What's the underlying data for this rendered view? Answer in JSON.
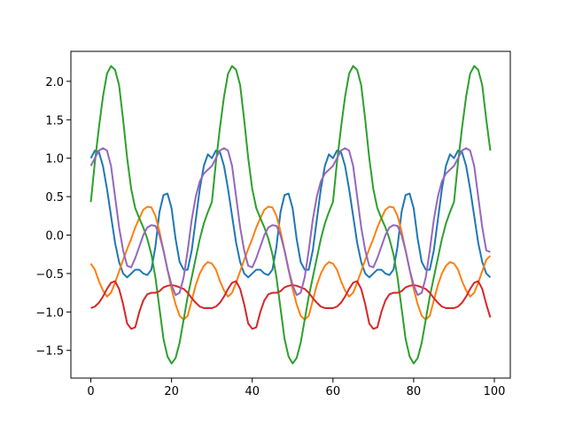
{
  "chart_data": {
    "type": "line",
    "x": [
      0,
      1,
      2,
      3,
      4,
      5,
      6,
      7,
      8,
      9,
      10,
      11,
      12,
      13,
      14,
      15,
      16,
      17,
      18,
      19,
      20,
      21,
      22,
      23,
      24,
      25,
      26,
      27,
      28,
      29,
      30,
      31,
      32,
      33,
      34,
      35,
      36,
      37,
      38,
      39,
      40,
      41,
      42,
      43,
      44,
      45,
      46,
      47,
      48,
      49,
      50,
      51,
      52,
      53,
      54,
      55,
      56,
      57,
      58,
      59,
      60,
      61,
      62,
      63,
      64,
      65,
      66,
      67,
      68,
      69,
      70,
      71,
      72,
      73,
      74,
      75,
      76,
      77,
      78,
      79,
      80,
      81,
      82,
      83,
      84,
      85,
      86,
      87,
      88,
      89,
      90,
      91,
      92,
      93,
      94,
      95,
      96,
      97,
      98,
      99
    ],
    "series": [
      {
        "color": "#1f77b4",
        "values": [
          1.0,
          1.1,
          1.08,
          0.9,
          0.6,
          0.25,
          -0.1,
          -0.35,
          -0.5,
          -0.55,
          -0.5,
          -0.45,
          -0.45,
          -0.5,
          -0.52,
          -0.45,
          -0.15,
          0.3,
          0.52,
          0.54,
          0.35,
          -0.05,
          -0.35,
          -0.45,
          -0.45,
          -0.2,
          0.2,
          0.6,
          0.9,
          1.05,
          1.0,
          1.1,
          1.08,
          0.9,
          0.6,
          0.25,
          -0.1,
          -0.35,
          -0.5,
          -0.55,
          -0.5,
          -0.45,
          -0.45,
          -0.5,
          -0.52,
          -0.45,
          -0.15,
          0.3,
          0.52,
          0.54,
          0.35,
          -0.05,
          -0.35,
          -0.45,
          -0.45,
          -0.2,
          0.2,
          0.6,
          0.9,
          1.05,
          1.0,
          1.1,
          1.08,
          0.9,
          0.6,
          0.25,
          -0.1,
          -0.35,
          -0.5,
          -0.55,
          -0.5,
          -0.45,
          -0.45,
          -0.5,
          -0.52,
          -0.45,
          -0.15,
          0.3,
          0.52,
          0.54,
          0.35,
          -0.05,
          -0.35,
          -0.45,
          -0.45,
          -0.2,
          0.2,
          0.6,
          0.9,
          1.05,
          1.0,
          1.1,
          1.08,
          0.9,
          0.6,
          0.25,
          -0.1,
          -0.35,
          -0.5,
          -0.55
        ]
      },
      {
        "color": "#ff7f0e",
        "values": [
          -0.37,
          -0.45,
          -0.6,
          -0.72,
          -0.8,
          -0.75,
          -0.62,
          -0.47,
          -0.32,
          -0.18,
          -0.05,
          0.1,
          0.22,
          0.33,
          0.37,
          0.36,
          0.25,
          0.05,
          -0.2,
          -0.45,
          -0.7,
          -0.9,
          -1.05,
          -1.1,
          -1.05,
          -0.85,
          -0.65,
          -0.5,
          -0.4,
          -0.35,
          -0.37,
          -0.45,
          -0.6,
          -0.72,
          -0.8,
          -0.75,
          -0.62,
          -0.47,
          -0.32,
          -0.18,
          -0.05,
          0.1,
          0.22,
          0.33,
          0.37,
          0.36,
          0.25,
          0.05,
          -0.2,
          -0.45,
          -0.7,
          -0.9,
          -1.05,
          -1.1,
          -1.05,
          -0.85,
          -0.65,
          -0.5,
          -0.4,
          -0.35,
          -0.37,
          -0.45,
          -0.6,
          -0.72,
          -0.8,
          -0.75,
          -0.62,
          -0.47,
          -0.32,
          -0.18,
          -0.05,
          0.1,
          0.22,
          0.33,
          0.37,
          0.36,
          0.25,
          0.05,
          -0.2,
          -0.45,
          -0.7,
          -0.9,
          -1.05,
          -1.1,
          -1.05,
          -0.85,
          -0.65,
          -0.5,
          -0.4,
          -0.35,
          -0.37,
          -0.45,
          -0.6,
          -0.72,
          -0.8,
          -0.75,
          -0.62,
          -0.47,
          -0.32,
          -0.27
        ]
      },
      {
        "color": "#2ca02c",
        "values": [
          0.43,
          0.95,
          1.4,
          1.8,
          2.1,
          2.2,
          2.15,
          1.95,
          1.5,
          1.0,
          0.6,
          0.35,
          0.22,
          0.1,
          -0.05,
          -0.25,
          -0.55,
          -0.95,
          -1.35,
          -1.58,
          -1.67,
          -1.6,
          -1.4,
          -1.1,
          -0.8,
          -0.55,
          -0.3,
          -0.05,
          0.15,
          0.3,
          0.43,
          0.95,
          1.4,
          1.8,
          2.1,
          2.2,
          2.15,
          1.95,
          1.5,
          1.0,
          0.6,
          0.35,
          0.22,
          0.1,
          -0.05,
          -0.25,
          -0.55,
          -0.95,
          -1.35,
          -1.58,
          -1.67,
          -1.6,
          -1.4,
          -1.1,
          -0.8,
          -0.55,
          -0.3,
          -0.05,
          0.15,
          0.3,
          0.43,
          0.95,
          1.4,
          1.8,
          2.1,
          2.2,
          2.15,
          1.95,
          1.5,
          1.0,
          0.6,
          0.35,
          0.22,
          0.1,
          -0.05,
          -0.25,
          -0.55,
          -0.95,
          -1.35,
          -1.58,
          -1.67,
          -1.6,
          -1.4,
          -1.1,
          -0.8,
          -0.55,
          -0.3,
          -0.05,
          0.15,
          0.3,
          0.43,
          0.95,
          1.4,
          1.8,
          2.1,
          2.2,
          2.15,
          1.95,
          1.5,
          1.1
        ]
      },
      {
        "color": "#d62728",
        "values": [
          -0.95,
          -0.93,
          -0.88,
          -0.8,
          -0.7,
          -0.62,
          -0.6,
          -0.7,
          -0.9,
          -1.15,
          -1.22,
          -1.2,
          -1.0,
          -0.85,
          -0.77,
          -0.75,
          -0.75,
          -0.73,
          -0.68,
          -0.66,
          -0.65,
          -0.66,
          -0.68,
          -0.7,
          -0.75,
          -0.82,
          -0.88,
          -0.93,
          -0.95,
          -0.95,
          -0.95,
          -0.93,
          -0.88,
          -0.8,
          -0.7,
          -0.62,
          -0.6,
          -0.7,
          -0.9,
          -1.15,
          -1.22,
          -1.2,
          -1.0,
          -0.85,
          -0.77,
          -0.75,
          -0.75,
          -0.73,
          -0.68,
          -0.66,
          -0.65,
          -0.66,
          -0.68,
          -0.7,
          -0.75,
          -0.82,
          -0.88,
          -0.93,
          -0.95,
          -0.95,
          -0.95,
          -0.93,
          -0.88,
          -0.8,
          -0.7,
          -0.62,
          -0.6,
          -0.7,
          -0.9,
          -1.15,
          -1.22,
          -1.2,
          -1.0,
          -0.85,
          -0.77,
          -0.75,
          -0.75,
          -0.73,
          -0.68,
          -0.66,
          -0.65,
          -0.66,
          -0.68,
          -0.7,
          -0.75,
          -0.82,
          -0.88,
          -0.93,
          -0.95,
          -0.95,
          -0.95,
          -0.93,
          -0.88,
          -0.8,
          -0.7,
          -0.62,
          -0.6,
          -0.7,
          -0.9,
          -1.07
        ]
      },
      {
        "color": "#9467bd",
        "values": [
          0.9,
          1.0,
          1.1,
          1.13,
          1.1,
          0.9,
          0.5,
          0.1,
          -0.2,
          -0.4,
          -0.42,
          -0.3,
          -0.15,
          0.0,
          0.1,
          0.13,
          0.12,
          0.0,
          -0.2,
          -0.45,
          -0.65,
          -0.78,
          -0.75,
          -0.55,
          -0.2,
          0.2,
          0.5,
          0.7,
          0.8,
          0.85,
          0.9,
          1.0,
          1.1,
          1.13,
          1.1,
          0.9,
          0.5,
          0.1,
          -0.2,
          -0.4,
          -0.42,
          -0.3,
          -0.15,
          0.0,
          0.1,
          0.13,
          0.12,
          0.0,
          -0.2,
          -0.45,
          -0.65,
          -0.78,
          -0.75,
          -0.55,
          -0.2,
          0.2,
          0.5,
          0.7,
          0.8,
          0.85,
          0.9,
          1.0,
          1.1,
          1.13,
          1.1,
          0.9,
          0.5,
          0.1,
          -0.2,
          -0.4,
          -0.42,
          -0.3,
          -0.15,
          0.0,
          0.1,
          0.13,
          0.12,
          0.0,
          -0.2,
          -0.45,
          -0.65,
          -0.78,
          -0.75,
          -0.55,
          -0.2,
          0.2,
          0.5,
          0.7,
          0.8,
          0.85,
          0.9,
          1.0,
          1.1,
          1.13,
          1.1,
          0.9,
          0.5,
          0.1,
          -0.2,
          -0.22
        ]
      }
    ],
    "xlim": [
      -4.95,
      103.95
    ],
    "xticks": [
      0,
      20,
      40,
      60,
      80,
      100
    ],
    "ylim": [
      -1.86,
      2.39
    ],
    "yticks": [
      {
        "value": -1.5,
        "label": "−1.5"
      },
      {
        "value": -1.0,
        "label": "−1.0"
      },
      {
        "value": -0.5,
        "label": "−0.5"
      },
      {
        "value": 0,
        "label": "0.0"
      },
      0.5,
      {
        "value": 1.0,
        "label": "1.0"
      },
      1.5,
      {
        "value": 2.0,
        "label": "2.0"
      }
    ]
  }
}
